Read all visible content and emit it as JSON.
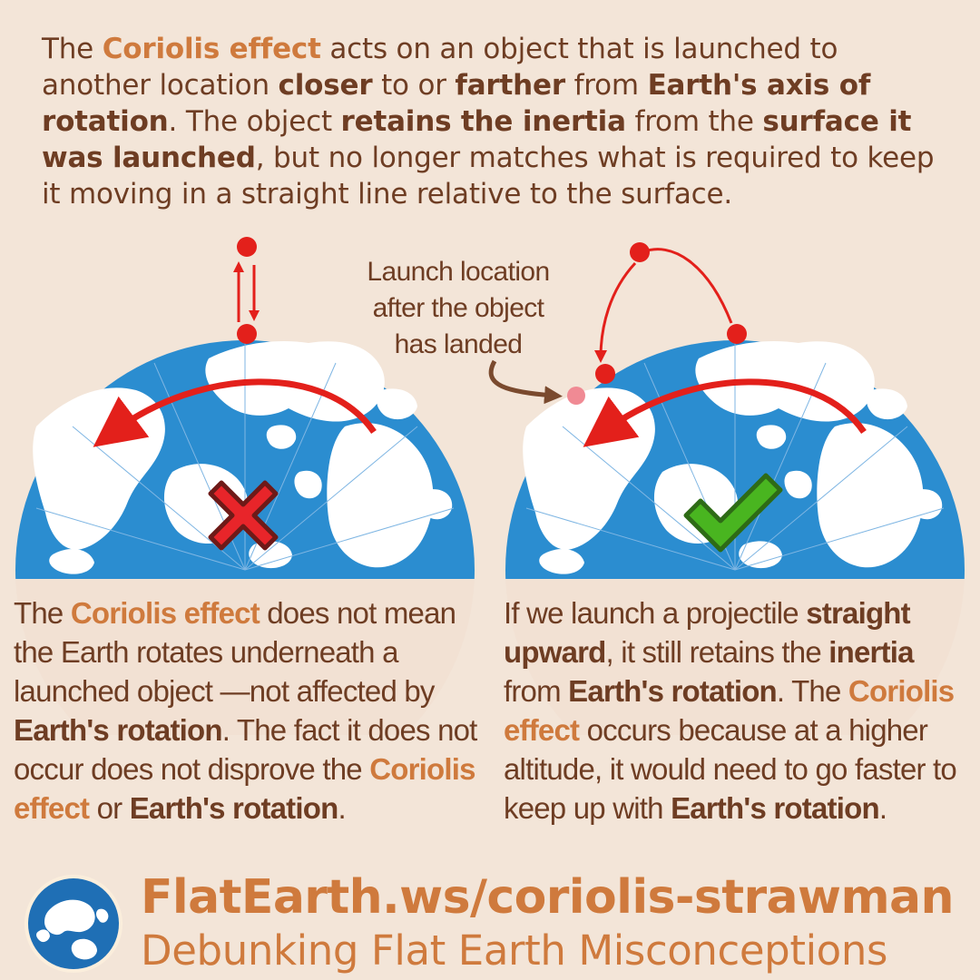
{
  "intro": {
    "p1": "The ",
    "p2": "Coriolis effect",
    "p3": " acts on an object that is launched to another location ",
    "p4": "closer",
    "p5": " to or ",
    "p6": "farther",
    "p7": " from ",
    "p8": "Earth's axis of rotation",
    "p9": ". The object ",
    "p10": "retains the inertia",
    "p11": " from the ",
    "p12": "surface it was launched",
    "p13": ", but no longer matches what is required to keep it moving in a straight line relative to the surface."
  },
  "callout": {
    "line1": "Launch location",
    "line2": "after the object",
    "line3": "has landed"
  },
  "left_panel": {
    "marker_icon": "red-x-icon",
    "p1": "The ",
    "p2": "Coriolis effect",
    "p3": " does not mean the Earth rotates underneath a launched object —not affected by ",
    "p4": "Earth's rotation",
    "p5": ". The fact it does not occur does not disprove the ",
    "p6": "Coriolis effect",
    "p7": " or ",
    "p8": "Earth's rotation",
    "p9": "."
  },
  "right_panel": {
    "marker_icon": "green-checkmark-icon",
    "p1": "If we launch a projectile ",
    "p2": "straight upward",
    "p3": ", it still retains the ",
    "p4": "inertia",
    "p5": " from ",
    "p6": "Earth's rotation",
    "p7": ". The ",
    "p8": "Coriolis effect",
    "p9": " occurs because at a higher altitude, it would need to go faster to keep up with ",
    "p10": "Earth's rotation",
    "p11": "."
  },
  "footer": {
    "url": "FlatEarth.ws/coriolis-strawman",
    "tagline": "Debunking Flat Earth Misconceptions",
    "logo_icon": "globe-logo-icon"
  },
  "colors": {
    "background": "#f3e5d8",
    "text_brown": "#6e3d23",
    "accent_orange": "#cf7a3d",
    "ocean_blue": "#2b8dd0",
    "arrow_red": "#e3201b",
    "callout_arrow": "#7a4a2e",
    "landing_pink": "#f08a94",
    "x_red": "#e8252a",
    "check_green": "#49b520"
  }
}
